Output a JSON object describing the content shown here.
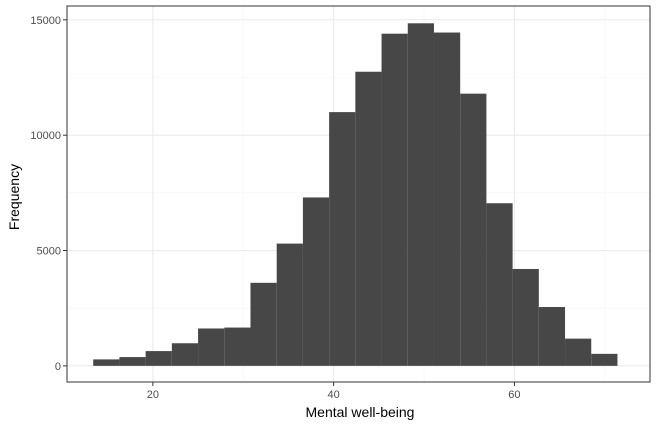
{
  "chart_data": {
    "type": "bar",
    "title": "",
    "xlabel": "Mental well-being",
    "ylabel": "Frequency",
    "xlim": [
      10.5,
      75
    ],
    "ylim": [
      -700,
      15600
    ],
    "x_ticks": [
      20,
      40,
      60
    ],
    "x_tick_labels": [
      "20",
      "40",
      "60"
    ],
    "y_ticks": [
      0,
      5000,
      10000,
      15000
    ],
    "y_tick_labels": [
      "0",
      "5000",
      "10000",
      "15000"
    ],
    "grid": true,
    "legend": "none",
    "bin_width": 2.9,
    "bins": [
      {
        "x_start": 13.4,
        "x_end": 16.3,
        "count": 280
      },
      {
        "x_start": 16.3,
        "x_end": 19.2,
        "count": 380
      },
      {
        "x_start": 19.2,
        "x_end": 22.1,
        "count": 640
      },
      {
        "x_start": 22.1,
        "x_end": 25.0,
        "count": 980
      },
      {
        "x_start": 25.0,
        "x_end": 27.9,
        "count": 1620
      },
      {
        "x_start": 27.9,
        "x_end": 30.8,
        "count": 1660
      },
      {
        "x_start": 30.8,
        "x_end": 33.7,
        "count": 3600
      },
      {
        "x_start": 33.7,
        "x_end": 36.6,
        "count": 5300
      },
      {
        "x_start": 36.6,
        "x_end": 39.5,
        "count": 7300
      },
      {
        "x_start": 39.5,
        "x_end": 42.4,
        "count": 11000
      },
      {
        "x_start": 42.4,
        "x_end": 45.3,
        "count": 12750
      },
      {
        "x_start": 45.3,
        "x_end": 48.2,
        "count": 14400
      },
      {
        "x_start": 48.2,
        "x_end": 51.1,
        "count": 14850
      },
      {
        "x_start": 51.1,
        "x_end": 54.0,
        "count": 14450
      },
      {
        "x_start": 54.0,
        "x_end": 56.9,
        "count": 11800
      },
      {
        "x_start": 56.9,
        "x_end": 59.8,
        "count": 7050
      },
      {
        "x_start": 59.8,
        "x_end": 62.7,
        "count": 4200
      },
      {
        "x_start": 62.7,
        "x_end": 65.6,
        "count": 2550
      },
      {
        "x_start": 65.6,
        "x_end": 68.5,
        "count": 1180
      },
      {
        "x_start": 68.5,
        "x_end": 71.4,
        "count": 520
      }
    ],
    "colors": {
      "bar_fill": "#474747",
      "panel_border": "#333333",
      "grid_major": "#ebebeb",
      "grid_minor": "#f5f5f5",
      "tick_text": "#4d4d4d",
      "title_text": "#000000"
    }
  }
}
